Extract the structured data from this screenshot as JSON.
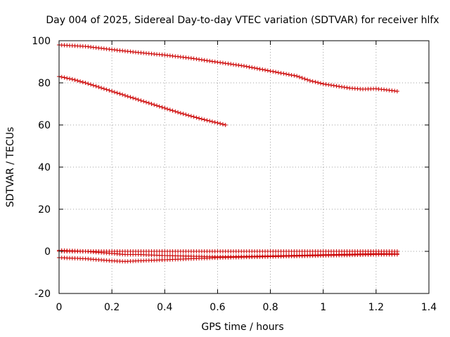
{
  "chart_data": {
    "type": "scatter",
    "title": "Day 004 of 2025, Sidereal Day-to-day VTEC variation (SDTVAR) for receiver hlfx",
    "xlabel": "GPS time / hours",
    "ylabel": "SDTVAR / TECUs",
    "xlim": [
      0,
      1.4
    ],
    "ylim": [
      -20,
      100
    ],
    "xticks": [
      0,
      0.2,
      0.4,
      0.6,
      0.8,
      1,
      1.2,
      1.4
    ],
    "xtick_labels": [
      "0",
      "0.2",
      "0.4",
      "0.6",
      "0.8",
      "1",
      "1.2",
      "1.4"
    ],
    "yticks": [
      -20,
      0,
      20,
      40,
      60,
      80,
      100
    ],
    "ytick_labels": [
      "-20",
      "0",
      "20",
      "40",
      "60",
      "80",
      "100"
    ],
    "grid": true,
    "marker": "plus",
    "color": "#cc0000",
    "series": [
      {
        "name": "series-1",
        "x": [
          0,
          0.1,
          0.2,
          0.3,
          0.4,
          0.5,
          0.6,
          0.7,
          0.8,
          0.9,
          0.95,
          1.0,
          1.05,
          1.1,
          1.15,
          1.2,
          1.25,
          1.28
        ],
        "y": [
          98,
          97.3,
          95.8,
          94.4,
          93.2,
          91.7,
          89.8,
          88,
          85.6,
          83.2,
          81,
          79.5,
          78.5,
          77.5,
          77,
          77.2,
          76.5,
          76
        ]
      },
      {
        "name": "series-2",
        "x": [
          0,
          0.05,
          0.1,
          0.15,
          0.2,
          0.25,
          0.3,
          0.35,
          0.4,
          0.45,
          0.5,
          0.55,
          0.6,
          0.63
        ],
        "y": [
          83,
          81.7,
          80,
          78,
          76,
          74,
          72,
          70,
          68,
          66,
          64.2,
          62.5,
          61,
          60
        ]
      },
      {
        "name": "series-3",
        "x": [
          0,
          0.2,
          0.4,
          0.6,
          0.8,
          1.0,
          1.2,
          1.28
        ],
        "y": [
          0,
          0,
          0,
          0,
          0,
          0,
          0,
          0
        ]
      },
      {
        "name": "series-4",
        "x": [
          0,
          0.1,
          0.2,
          0.25,
          0.3,
          0.4,
          0.5,
          0.6,
          0.8,
          1.0,
          1.2,
          1.28
        ],
        "y": [
          0.5,
          0,
          -1,
          -1.5,
          -1.5,
          -2,
          -2.3,
          -2.6,
          -2.2,
          -1.6,
          -1.1,
          -1
        ]
      },
      {
        "name": "series-5",
        "x": [
          0,
          0.1,
          0.2,
          0.25,
          0.3,
          0.4,
          0.5,
          0.6,
          0.8,
          1.0,
          1.2,
          1.28
        ],
        "y": [
          -3,
          -3.5,
          -4.5,
          -4.8,
          -4.5,
          -4,
          -3.5,
          -3,
          -2.5,
          -2,
          -1.5,
          -1.5
        ]
      }
    ]
  }
}
